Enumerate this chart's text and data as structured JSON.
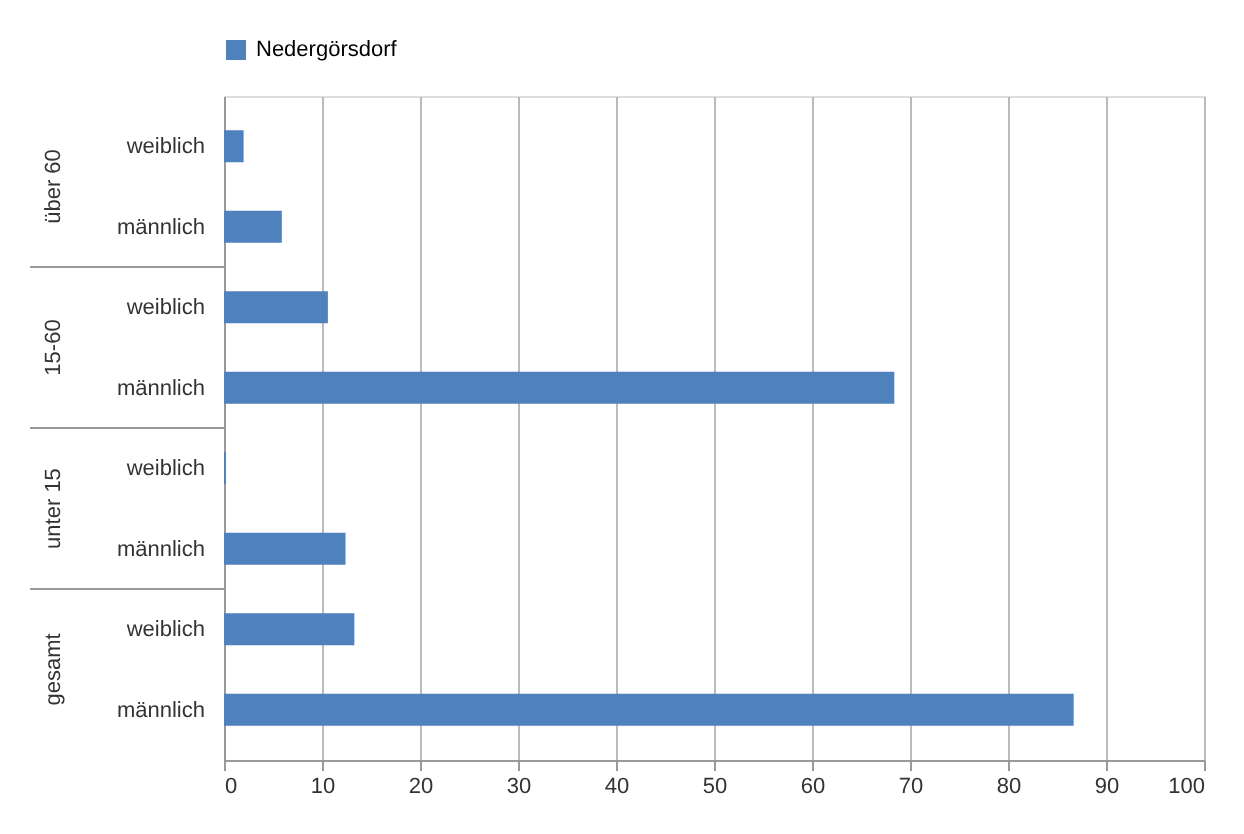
{
  "chart_data": {
    "type": "bar",
    "orientation": "horizontal",
    "categories": [
      "weiblich",
      "männlich",
      "weiblich",
      "männlich",
      "weiblich",
      "männlich",
      "weiblich",
      "männlich"
    ],
    "annotations": [
      "über 60",
      "15-60",
      "unter 15",
      "gesamt"
    ],
    "series": [
      {
        "name": "Nedergörsdorf",
        "color": "#4f81bd",
        "values": [
          2.0,
          5.9,
          10.6,
          68.4,
          0.2,
          12.4,
          13.3,
          86.7
        ]
      }
    ],
    "xlim": [
      0,
      100
    ],
    "xticks": [
      0,
      10,
      20,
      30,
      40,
      50,
      60,
      70,
      80,
      90,
      100
    ],
    "grid": "x",
    "legend": "top"
  }
}
